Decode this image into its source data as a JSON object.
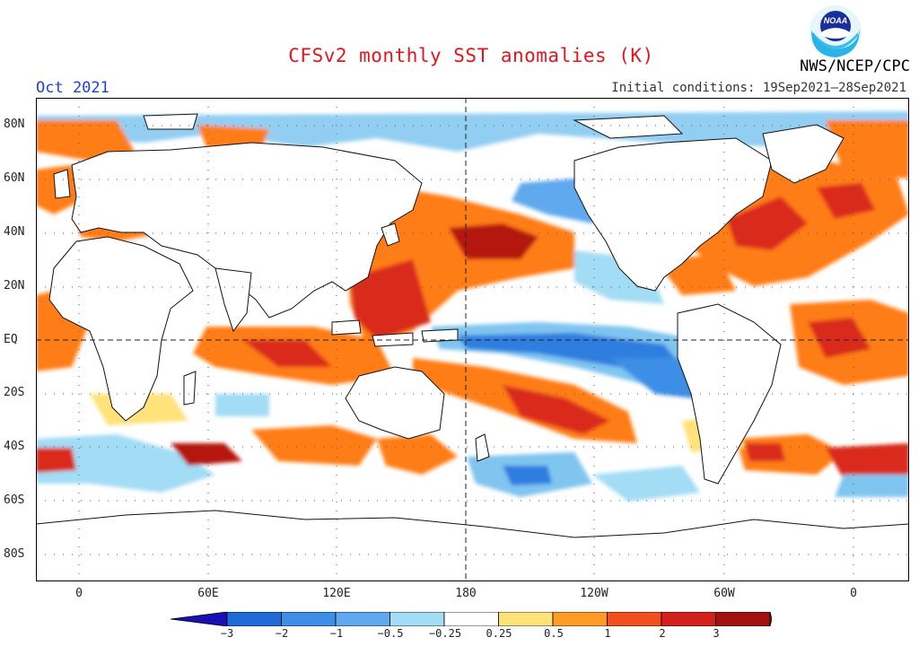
{
  "header": {
    "title": "CFSv2 monthly SST anomalies (K)",
    "valid_month": "Oct 2021",
    "initial_conditions": "Initial conditions: 19Sep2021–28Sep2021",
    "agency": "NWS/NCEP/CPC",
    "logo_text": "NOAA"
  },
  "axes": {
    "lat_labels": [
      "80N",
      "60N",
      "40N",
      "20N",
      "EQ",
      "20S",
      "40S",
      "60S",
      "80S"
    ],
    "lon_labels": [
      "0",
      "60E",
      "120E",
      "180",
      "120W",
      "60W",
      "0"
    ]
  },
  "colorbar": {
    "labels": [
      "−3",
      "−2",
      "−1",
      "−0.5",
      "−0.25",
      "0.25",
      "0.5",
      "1",
      "2",
      "3"
    ],
    "colors": [
      "#1a0fb4",
      "#1e6bd6",
      "#3c8ee6",
      "#61a9ef",
      "#a3dcf5",
      "#ffffff",
      "#ffe27a",
      "#ff9b26",
      "#f0501e",
      "#d4201c",
      "#a31010",
      "#7a4a3e"
    ]
  },
  "colors": {
    "title": "#e8141c",
    "month": "#1f3fd8",
    "land": "#ffffff",
    "warm": "#ff7d19",
    "hot": "#d92a1a",
    "cool": "#7fc5f0",
    "cold": "#2f7ee0"
  }
}
